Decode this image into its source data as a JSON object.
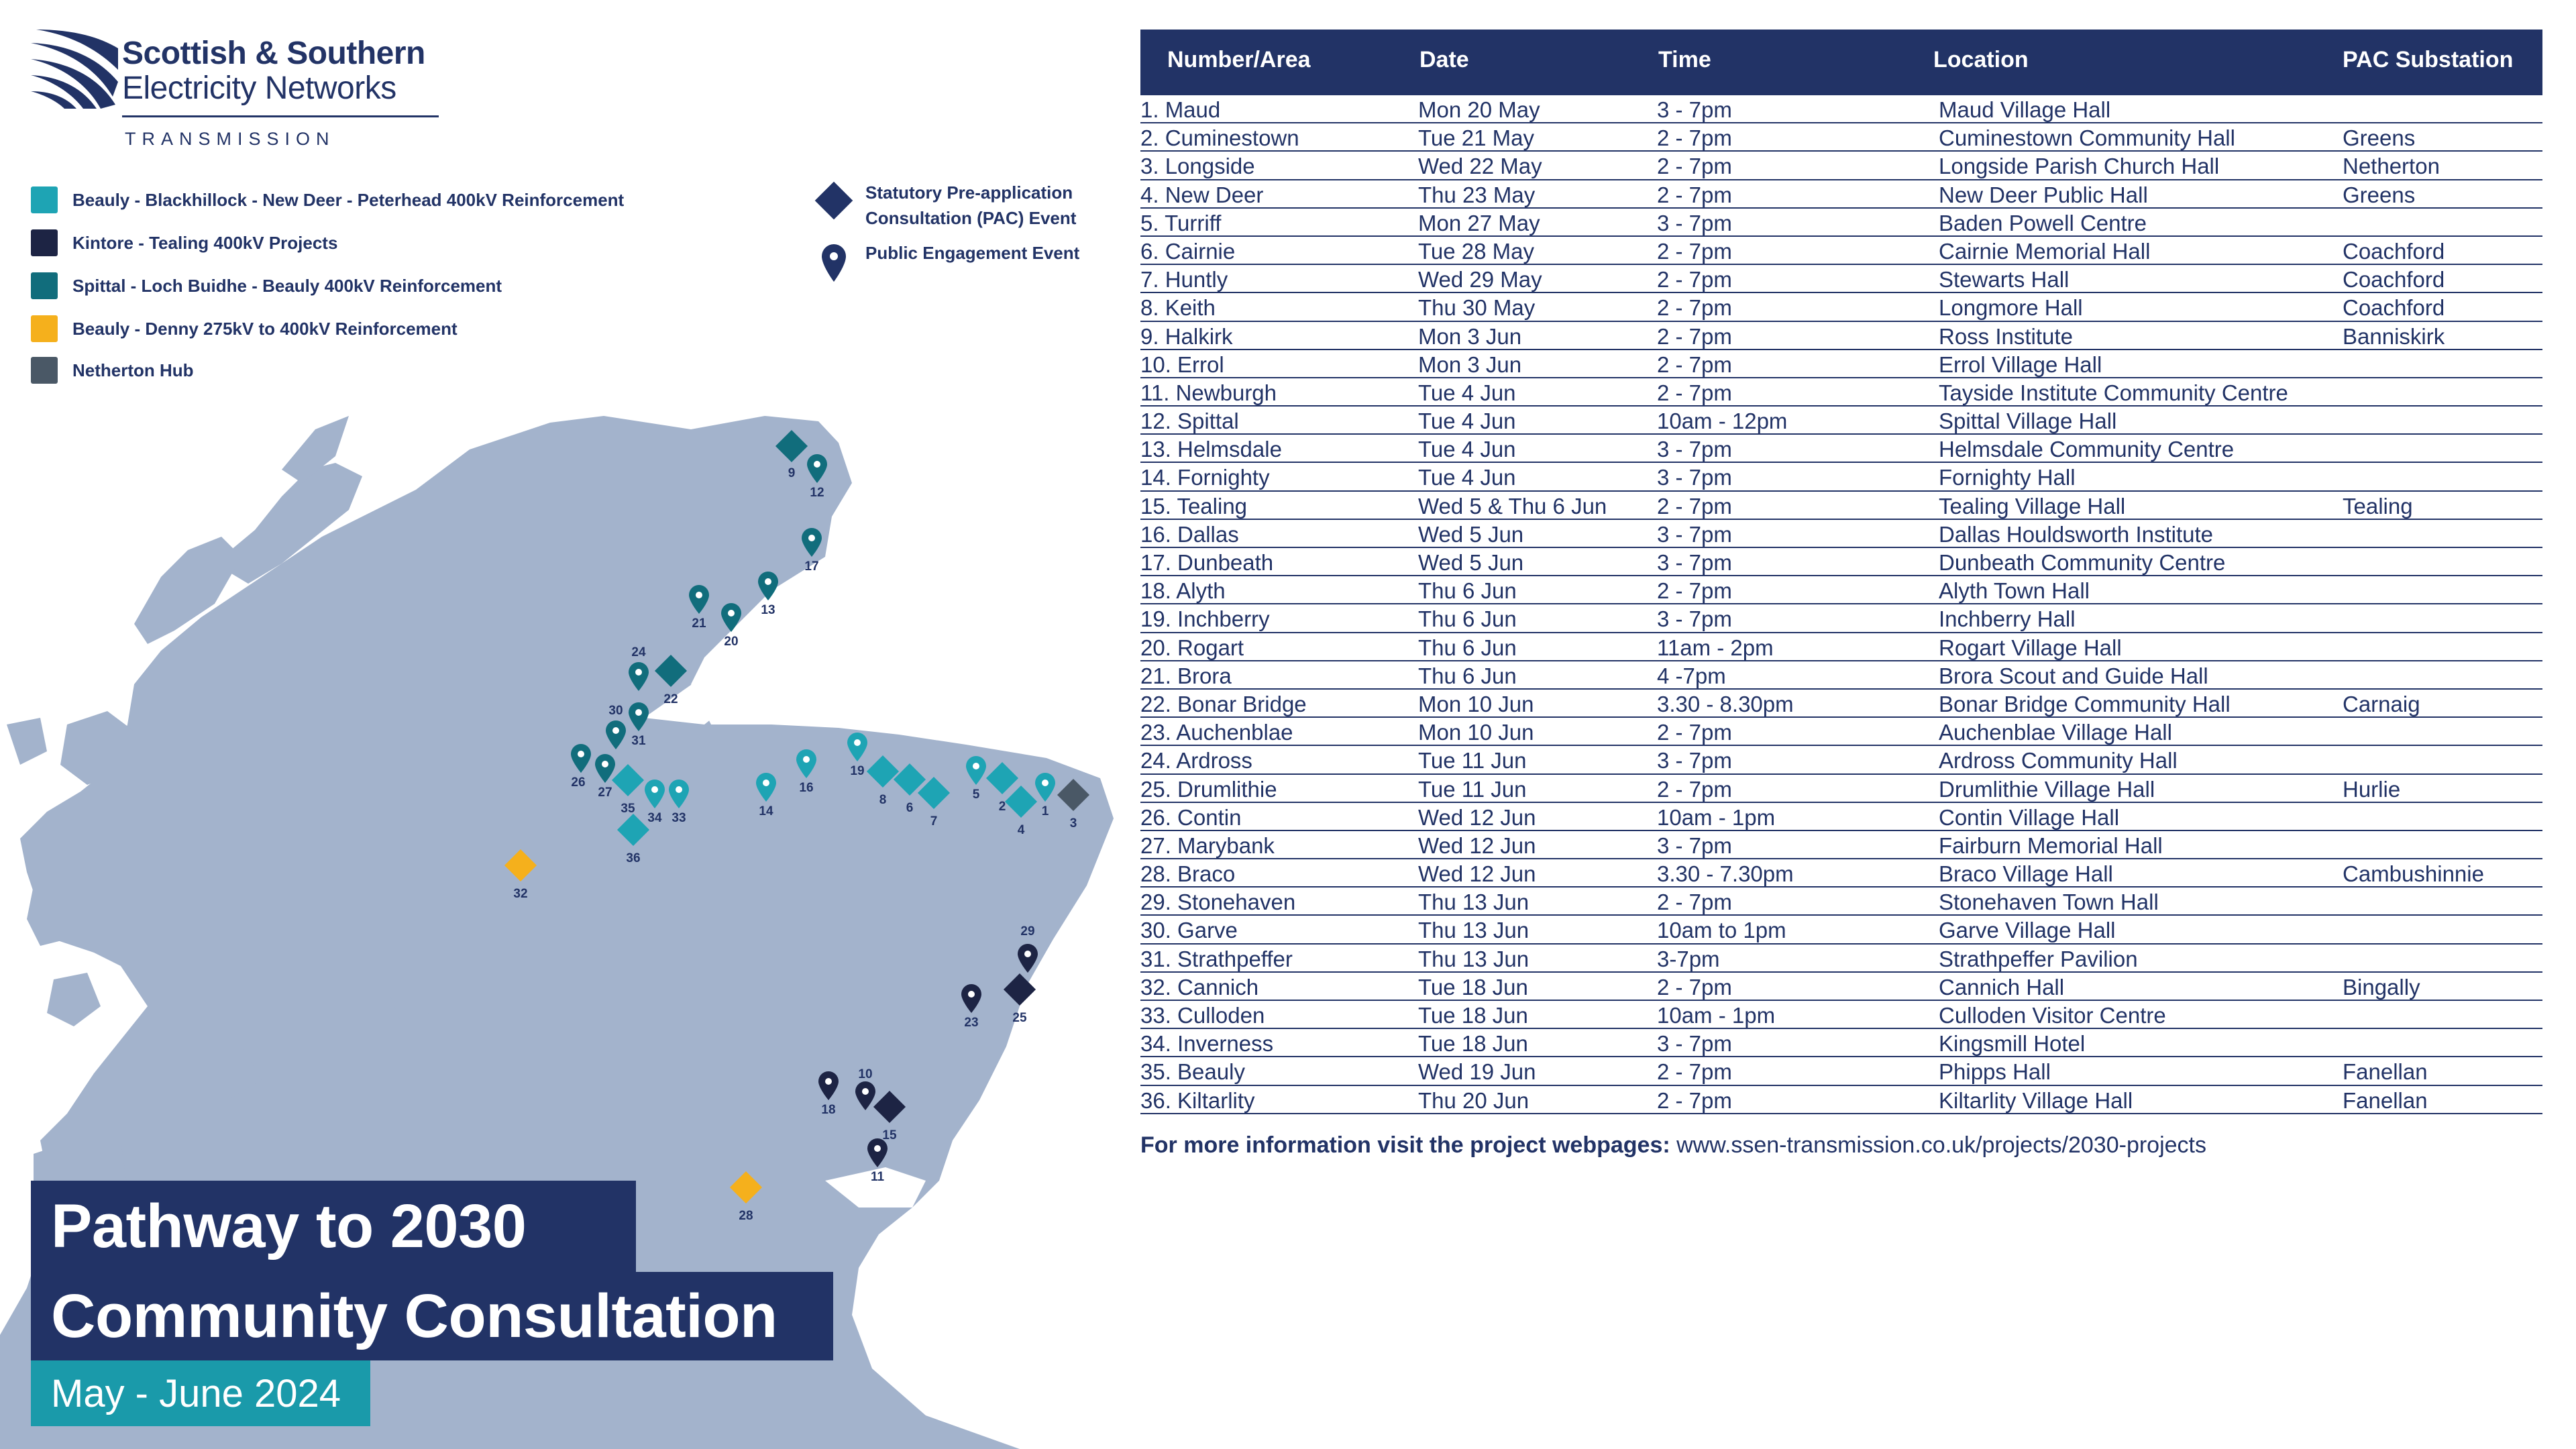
{
  "brand": {
    "line1": "Scottish & Southern",
    "line2": "Electricity Networks",
    "line3": "TRANSMISSION"
  },
  "colors": {
    "navy": "#223366",
    "teal_light": "#1ea4b4",
    "teal_dark": "#116d7c",
    "dark": "#1d2444",
    "amber": "#f5b01c",
    "slate": "#4a5866",
    "land": "#a3b3cc"
  },
  "legend": {
    "projects": [
      {
        "label": "Beauly - Blackhillock - New Deer - Peterhead 400kV Reinforcement",
        "color": "#1ea4b4"
      },
      {
        "label": "Kintore - Tealing 400kV Projects",
        "color": "#1d2444"
      },
      {
        "label": "Spittal - Loch  Buidhe - Beauly 400kV Reinforcement",
        "color": "#116d7c"
      },
      {
        "label": "Beauly - Denny 275kV to 400kV Reinforcement",
        "color": "#f5b01c"
      },
      {
        "label": "Netherton Hub",
        "color": "#4a5866"
      }
    ],
    "pac_line1": "Statutory Pre-application",
    "pac_line2": "Consultation (PAC) Event",
    "pac_icon": "diamond-icon",
    "public": "Public Engagement Event",
    "public_icon": "map-pin-icon"
  },
  "map": {
    "markers": [
      {
        "label": "9",
        "type": "pac",
        "color": "#116d7c"
      },
      {
        "label": "12",
        "type": "pin",
        "color": "#116d7c"
      },
      {
        "label": "17",
        "type": "pin",
        "color": "#116d7c"
      },
      {
        "label": "13",
        "type": "pin",
        "color": "#116d7c"
      },
      {
        "label": "21",
        "type": "pin",
        "color": "#116d7c"
      },
      {
        "label": "20",
        "type": "pin",
        "color": "#116d7c"
      },
      {
        "label": "24",
        "type": "pin",
        "color": "#116d7c"
      },
      {
        "label": "22",
        "type": "pac",
        "color": "#116d7c"
      },
      {
        "label": "31",
        "type": "pin",
        "color": "#116d7c"
      },
      {
        "label": "30",
        "type": "pin",
        "color": "#116d7c"
      },
      {
        "label": "26",
        "type": "pin",
        "color": "#116d7c"
      },
      {
        "label": "27",
        "type": "pin",
        "color": "#116d7c"
      },
      {
        "label": "35",
        "type": "pac",
        "color": "#1ea4b4"
      },
      {
        "label": "34",
        "type": "pin",
        "color": "#1ea4b4"
      },
      {
        "label": "33",
        "type": "pin",
        "color": "#1ea4b4"
      },
      {
        "label": "36",
        "type": "pac",
        "color": "#1ea4b4"
      },
      {
        "label": "14",
        "type": "pin",
        "color": "#1ea4b4"
      },
      {
        "label": "16",
        "type": "pin",
        "color": "#1ea4b4"
      },
      {
        "label": "19",
        "type": "pin",
        "color": "#1ea4b4"
      },
      {
        "label": "8",
        "type": "pac",
        "color": "#1ea4b4"
      },
      {
        "label": "6",
        "type": "pac",
        "color": "#1ea4b4"
      },
      {
        "label": "7",
        "type": "pac",
        "color": "#1ea4b4"
      },
      {
        "label": "5",
        "type": "pin",
        "color": "#1ea4b4"
      },
      {
        "label": "2",
        "type": "pac",
        "color": "#1ea4b4"
      },
      {
        "label": "4",
        "type": "pac",
        "color": "#1ea4b4"
      },
      {
        "label": "1",
        "type": "pin",
        "color": "#1ea4b4"
      },
      {
        "label": "3",
        "type": "pac",
        "color": "#4a5866"
      },
      {
        "label": "32",
        "type": "pac",
        "color": "#f5b01c"
      },
      {
        "label": "28",
        "type": "pac",
        "color": "#f5b01c"
      },
      {
        "label": "29",
        "type": "pin",
        "color": "#1d2444"
      },
      {
        "label": "25",
        "type": "pac",
        "color": "#1d2444"
      },
      {
        "label": "23",
        "type": "pin",
        "color": "#1d2444"
      },
      {
        "label": "18",
        "type": "pin",
        "color": "#1d2444"
      },
      {
        "label": "10",
        "type": "pin",
        "color": "#1d2444"
      },
      {
        "label": "15",
        "type": "pac",
        "color": "#1d2444"
      },
      {
        "label": "11",
        "type": "pin",
        "color": "#1d2444"
      }
    ]
  },
  "title": {
    "line1": "Pathway to 2030",
    "line2": "Community Consultation",
    "dates": "May - June 2024"
  },
  "table": {
    "headers": [
      "Number/Area",
      "Date",
      "Time",
      "Location",
      "PAC Substation"
    ],
    "rows": [
      [
        "1. Maud",
        "Mon 20 May",
        "3 - 7pm",
        "Maud Village Hall",
        ""
      ],
      [
        "2. Cuminestown",
        "Tue 21 May",
        "2 - 7pm",
        "Cuminestown Community Hall",
        "Greens"
      ],
      [
        "3. Longside",
        "Wed 22 May",
        "2 - 7pm",
        "Longside Parish Church Hall",
        "Netherton"
      ],
      [
        "4. New Deer",
        "Thu 23 May",
        "2 - 7pm",
        "New Deer Public Hall",
        "Greens"
      ],
      [
        "5. Turriff",
        "Mon 27 May",
        "3 - 7pm",
        "Baden Powell Centre",
        ""
      ],
      [
        "6. Cairnie",
        "Tue 28 May",
        "2 - 7pm",
        "Cairnie Memorial Hall",
        "Coachford"
      ],
      [
        "7. Huntly",
        "Wed 29 May",
        "2 - 7pm",
        "Stewarts Hall",
        "Coachford"
      ],
      [
        "8. Keith",
        "Thu 30 May",
        "2 - 7pm",
        "Longmore Hall",
        "Coachford"
      ],
      [
        "9. Halkirk",
        "Mon 3 Jun",
        "2 - 7pm",
        "Ross Institute",
        "Banniskirk"
      ],
      [
        "10. Errol",
        "Mon 3 Jun",
        "2 - 7pm",
        "Errol Village Hall",
        ""
      ],
      [
        "11. Newburgh",
        "Tue 4 Jun",
        "2 - 7pm",
        "Tayside Institute Community Centre",
        ""
      ],
      [
        "12. Spittal",
        "Tue 4 Jun",
        "10am - 12pm",
        "Spittal Village Hall",
        ""
      ],
      [
        "13. Helmsdale",
        "Tue 4 Jun",
        "3 - 7pm",
        "Helmsdale Community Centre",
        ""
      ],
      [
        "14. Fornighty",
        "Tue 4 Jun",
        "3 - 7pm",
        "Fornighty Hall",
        ""
      ],
      [
        "15. Tealing",
        "Wed 5 & Thu 6 Jun",
        "2 - 7pm",
        "Tealing Village Hall",
        "Tealing"
      ],
      [
        "16. Dallas",
        "Wed 5 Jun",
        "3 - 7pm",
        "Dallas Houldsworth Institute",
        ""
      ],
      [
        "17. Dunbeath",
        "Wed 5 Jun",
        "3 - 7pm",
        "Dunbeath Community Centre",
        ""
      ],
      [
        "18. Alyth",
        "Thu 6 Jun",
        "2 - 7pm",
        "Alyth Town Hall",
        ""
      ],
      [
        "19. Inchberry",
        "Thu 6 Jun",
        "3 - 7pm",
        "Inchberry Hall",
        ""
      ],
      [
        "20. Rogart",
        "Thu 6 Jun",
        "11am - 2pm",
        "Rogart Village Hall",
        ""
      ],
      [
        "21. Brora",
        "Thu 6 Jun",
        "4 -7pm",
        "Brora Scout and Guide Hall",
        ""
      ],
      [
        "22. Bonar Bridge",
        "Mon 10 Jun",
        "3.30 - 8.30pm",
        "Bonar Bridge Community Hall",
        "Carnaig"
      ],
      [
        "23. Auchenblae",
        "Mon 10 Jun",
        "2 - 7pm",
        "Auchenblae Village Hall",
        ""
      ],
      [
        "24. Ardross",
        "Tue 11 Jun",
        "3 - 7pm",
        "Ardross Community Hall",
        ""
      ],
      [
        "25. Drumlithie",
        "Tue 11 Jun",
        "2 - 7pm",
        "Drumlithie Village Hall",
        "Hurlie"
      ],
      [
        "26. Contin",
        "Wed 12 Jun",
        "10am - 1pm",
        "Contin Village Hall",
        ""
      ],
      [
        "27. Marybank",
        "Wed 12 Jun",
        "3 - 7pm",
        "Fairburn Memorial Hall",
        ""
      ],
      [
        "28. Braco",
        "Wed 12 Jun",
        "3.30 - 7.30pm",
        "Braco Village Hall",
        "Cambushinnie"
      ],
      [
        "29. Stonehaven",
        "Thu 13 Jun",
        "2 - 7pm",
        "Stonehaven Town Hall",
        ""
      ],
      [
        "30. Garve",
        "Thu 13 Jun",
        "10am to 1pm",
        "Garve Village Hall",
        ""
      ],
      [
        "31. Strathpeffer",
        "Thu 13 Jun",
        "3-7pm",
        "Strathpeffer Pavilion",
        ""
      ],
      [
        "32. Cannich",
        "Tue 18 Jun",
        "2 - 7pm",
        "Cannich Hall",
        "Bingally"
      ],
      [
        "33. Culloden",
        "Tue 18 Jun",
        "10am - 1pm",
        "Culloden Visitor Centre",
        ""
      ],
      [
        "34. Inverness",
        "Tue 18 Jun",
        "3 - 7pm",
        "Kingsmill Hotel",
        ""
      ],
      [
        "35. Beauly",
        "Wed 19 Jun",
        "2 - 7pm",
        "Phipps Hall",
        "Fanellan"
      ],
      [
        "36. Kiltarlity",
        "Thu 20 Jun",
        "2 - 7pm",
        "Kiltarlity Village Hall",
        "Fanellan"
      ]
    ]
  },
  "footer": {
    "lead": "For more information visit the project webpages:",
    "url": "www.ssen-transmission.co.uk/projects/2030-projects"
  }
}
